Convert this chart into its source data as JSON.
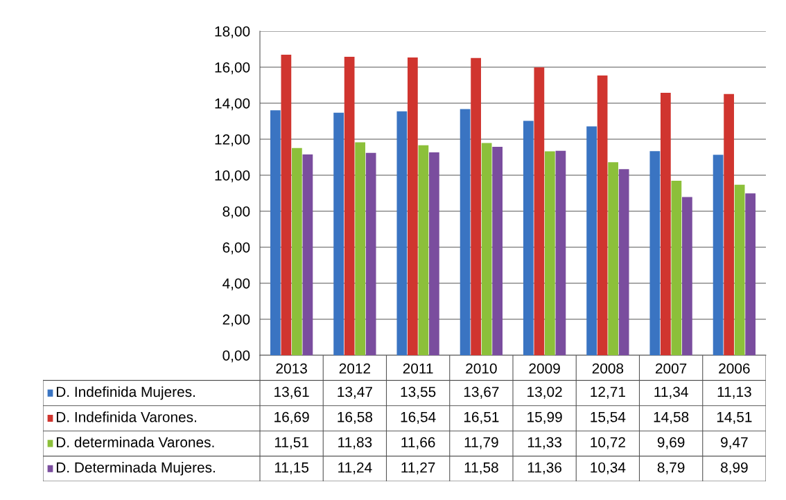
{
  "chart_data": {
    "type": "bar",
    "categories": [
      "2013",
      "2012",
      "2011",
      "2010",
      "2009",
      "2008",
      "2007",
      "2006"
    ],
    "series": [
      {
        "name": "D. Indefinida Mujeres.",
        "color": "#3a74c2",
        "values": [
          13.61,
          13.47,
          13.55,
          13.67,
          13.02,
          12.71,
          11.34,
          11.13
        ],
        "value_labels": [
          "13,61",
          "13,47",
          "13,55",
          "13,67",
          "13,02",
          "12,71",
          "11,34",
          "11,13"
        ]
      },
      {
        "name": "D. Indefinida Varones.",
        "color": "#d0352f",
        "values": [
          16.69,
          16.58,
          16.54,
          16.51,
          15.99,
          15.54,
          14.58,
          14.51
        ],
        "value_labels": [
          "16,69",
          "16,58",
          "16,54",
          "16,51",
          "15,99",
          "15,54",
          "14,58",
          "14,51"
        ]
      },
      {
        "name": "D. determinada Varones.",
        "color": "#8cc03a",
        "values": [
          11.51,
          11.83,
          11.66,
          11.79,
          11.33,
          10.72,
          9.69,
          9.47
        ],
        "value_labels": [
          "11,51",
          "11,83",
          "11,66",
          "11,79",
          "11,33",
          "10,72",
          "9,69",
          "9,47"
        ]
      },
      {
        "name": "D. Determinada Mujeres.",
        "color": "#7a4d9e",
        "values": [
          11.15,
          11.24,
          11.27,
          11.58,
          11.36,
          10.34,
          8.79,
          8.99
        ],
        "value_labels": [
          "11,15",
          "11,24",
          "11,27",
          "11,58",
          "11,36",
          "10,34",
          "8,79",
          "8,99"
        ]
      }
    ],
    "ylim": [
      0,
      18
    ],
    "yticks": [
      {
        "value": 0,
        "label": "0,00"
      },
      {
        "value": 2,
        "label": "2,00"
      },
      {
        "value": 4,
        "label": "4,00"
      },
      {
        "value": 6,
        "label": "6,00"
      },
      {
        "value": 8,
        "label": "8,00"
      },
      {
        "value": 10,
        "label": "10,00"
      },
      {
        "value": 12,
        "label": "12,00"
      },
      {
        "value": 14,
        "label": "14,00"
      },
      {
        "value": 16,
        "label": "16,00"
      },
      {
        "value": 18,
        "label": "18,00"
      }
    ],
    "grid": "y",
    "legend": "left"
  }
}
